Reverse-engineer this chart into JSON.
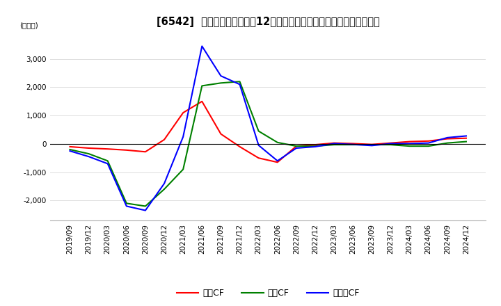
{
  "title": "[6542]  キャッシュフローの12か月移動合計の対前年同期増減額の推移",
  "ylabel": "(百万円)",
  "ylim": [
    -2700,
    4000
  ],
  "yticks": [
    -2000,
    -1000,
    0,
    1000,
    2000,
    3000
  ],
  "legend_labels": [
    "営業CF",
    "投資CF",
    "フリーCF"
  ],
  "legend_colors": [
    "#ff0000",
    "#008000",
    "#0000ff"
  ],
  "x_labels": [
    "2019/09",
    "2019/12",
    "2020/03",
    "2020/06",
    "2020/09",
    "2020/12",
    "2021/03",
    "2021/06",
    "2021/09",
    "2021/12",
    "2022/03",
    "2022/06",
    "2022/09",
    "2022/12",
    "2023/03",
    "2023/06",
    "2023/09",
    "2023/12",
    "2024/03",
    "2024/06",
    "2024/09",
    "2024/12"
  ],
  "operating_cf": [
    -100,
    -150,
    -180,
    -220,
    -280,
    150,
    1100,
    1500,
    350,
    -100,
    -500,
    -650,
    -80,
    -30,
    30,
    10,
    -20,
    30,
    80,
    100,
    180,
    200
  ],
  "investing_cf": [
    -200,
    -350,
    -600,
    -2100,
    -2200,
    -1600,
    -900,
    2050,
    2150,
    2200,
    450,
    50,
    -80,
    -80,
    -30,
    -30,
    -30,
    -30,
    -80,
    -80,
    30,
    80
  ],
  "free_cf": [
    -250,
    -450,
    -700,
    -2200,
    -2350,
    -1400,
    250,
    3450,
    2400,
    2100,
    -50,
    -600,
    -150,
    -100,
    10,
    -20,
    -60,
    10,
    10,
    30,
    220,
    280
  ],
  "background_color": "#ffffff",
  "grid_color": "#dddddd",
  "title_fontsize": 10.5,
  "axis_fontsize": 7.5,
  "legend_fontsize": 9
}
